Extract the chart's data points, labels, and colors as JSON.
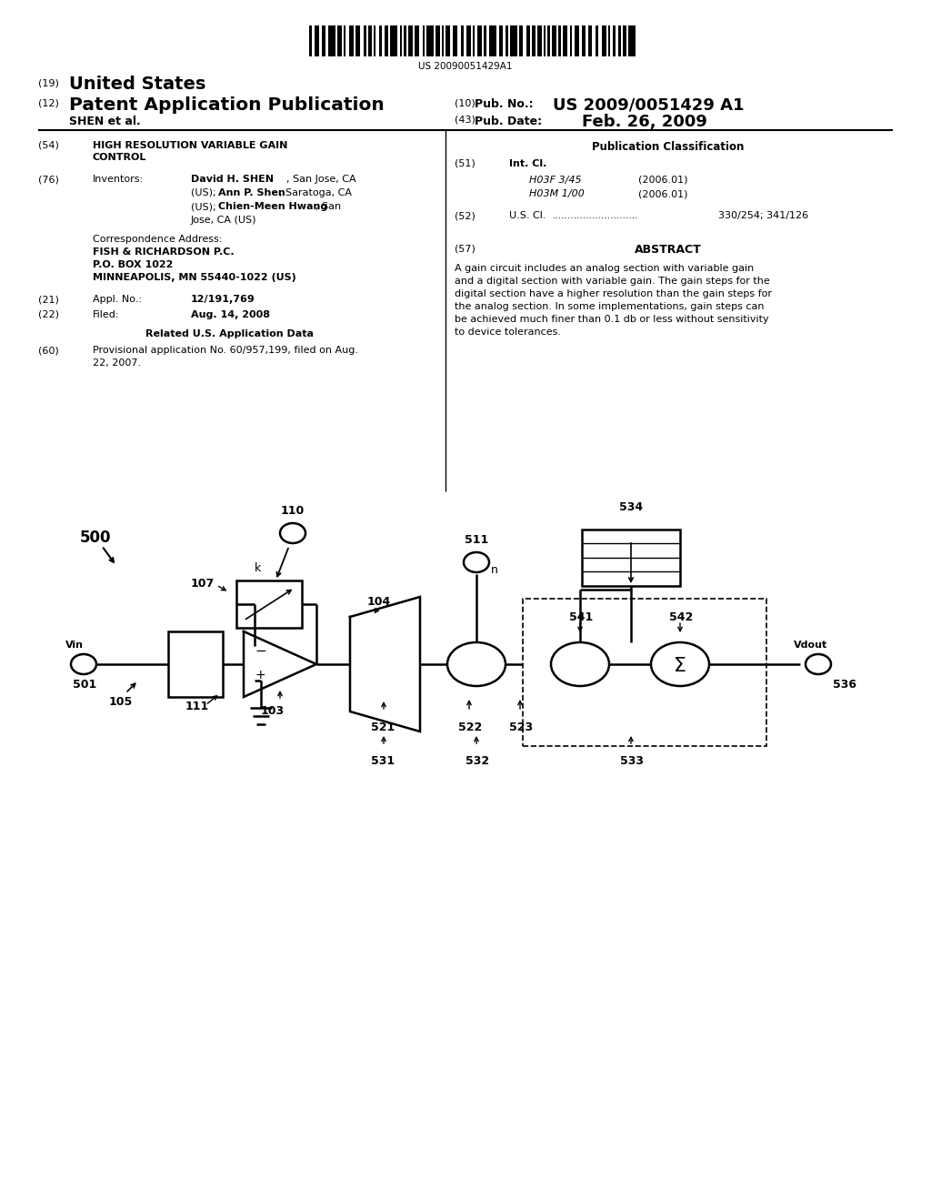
{
  "bg_color": "#ffffff",
  "barcode_number": "US 20090051429A1",
  "header_line1_num": "(19)",
  "header_line1_text": "United States",
  "header_line2_num": "(12)",
  "header_line2_text": "Patent Application Publication",
  "pub_no_num": "(10)",
  "pub_no_label": "Pub. No.:",
  "pub_no_value": "US 2009/0051429 A1",
  "shen": "SHEN et al.",
  "pub_date_num": "(43)",
  "pub_date_label": "Pub. Date:",
  "pub_date_value": "Feb. 26, 2009",
  "s54_num": "(54)",
  "s54_text1": "HIGH RESOLUTION VARIABLE GAIN",
  "s54_text2": "CONTROL",
  "s76_num": "(76)",
  "s76_label": "Inventors:",
  "inv1a": "David H. SHEN",
  "inv1b": ", San Jose, CA",
  "inv2a": "(US); ",
  "inv2b": "Ann P. Shen",
  "inv2c": ", Saratoga, CA",
  "inv3a": "(US); ",
  "inv3b": "Chien-Meen Hwang",
  "inv3c": ", San",
  "inv4": "Jose, CA (US)",
  "corr1": "Correspondence Address:",
  "corr2": "FISH & RICHARDSON P.C.",
  "corr3": "P.O. BOX 1022",
  "corr4": "MINNEAPOLIS, MN 55440-1022 (US)",
  "s21_num": "(21)",
  "s21_label": "Appl. No.:",
  "s21_value": "12/191,769",
  "s22_num": "(22)",
  "s22_label": "Filed:",
  "s22_value": "Aug. 14, 2008",
  "related_title": "Related U.S. Application Data",
  "s60_num": "(60)",
  "s60_text1": "Provisional application No. 60/957,199, filed on Aug.",
  "s60_text2": "22, 2007.",
  "pub_class_title": "Publication Classification",
  "s51_num": "(51)",
  "s51_label": "Int. Cl.",
  "class1": "H03F 3/45",
  "class1y": "(2006.01)",
  "class2": "H03M 1/00",
  "class2y": "(2006.01)",
  "s52_num": "(52)",
  "s52_label": "U.S. Cl.",
  "s52_value": "330/254; 341/126",
  "s57_num": "(57)",
  "s57_title": "ABSTRACT",
  "abstract1": "A gain circuit includes an analog section with variable gain",
  "abstract2": "and a digital section with variable gain. The gain steps for the",
  "abstract3": "digital section have a higher resolution than the gain steps for",
  "abstract4": "the analog section. In some implementations, gain steps can",
  "abstract5": "be achieved much finer than 0.1 db or less without sensitivity",
  "abstract6": "to device tolerances."
}
